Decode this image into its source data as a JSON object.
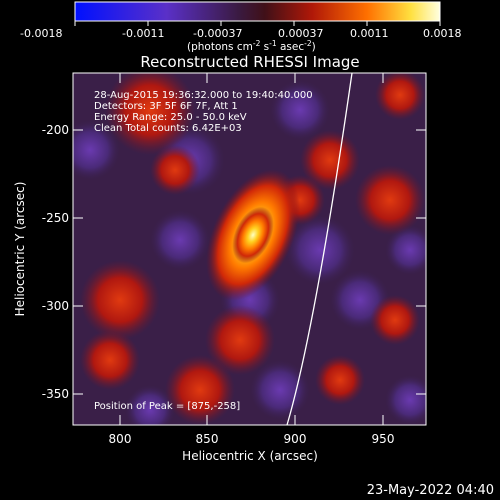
{
  "colorbar": {
    "ticks": [
      "-0.0018",
      "-0.0011",
      "-0.00037",
      "0.00037",
      "0.0011",
      "0.0018"
    ],
    "units_prefix": "(photons cm",
    "units_exp1": "-2",
    "units_s": " s",
    "units_exp2": "-1",
    "units_asec": " asec",
    "units_exp3": "-2",
    "units_suffix": ")"
  },
  "plot": {
    "title": "Reconstructed RHESSI Image",
    "info_lines": [
      "28-Aug-2015 19:36:32.000 to 19:40:40.000",
      "Detectors: 3F 5F 6F 7F, Att 1",
      "Energy Range: 25.0 - 50.0 keV",
      "Clean     Total counts: 6.42E+03"
    ],
    "peak_label": "Position of Peak = [875,-258]",
    "xlabel": "Heliocentric X (arcsec)",
    "ylabel": "Heliocentric Y (arcsec)",
    "xticks": [
      "800",
      "850",
      "900",
      "950"
    ],
    "yticks": [
      "-200",
      "-250",
      "-300",
      "-350"
    ]
  },
  "timestamp": "23-May-2022 04:40"
}
